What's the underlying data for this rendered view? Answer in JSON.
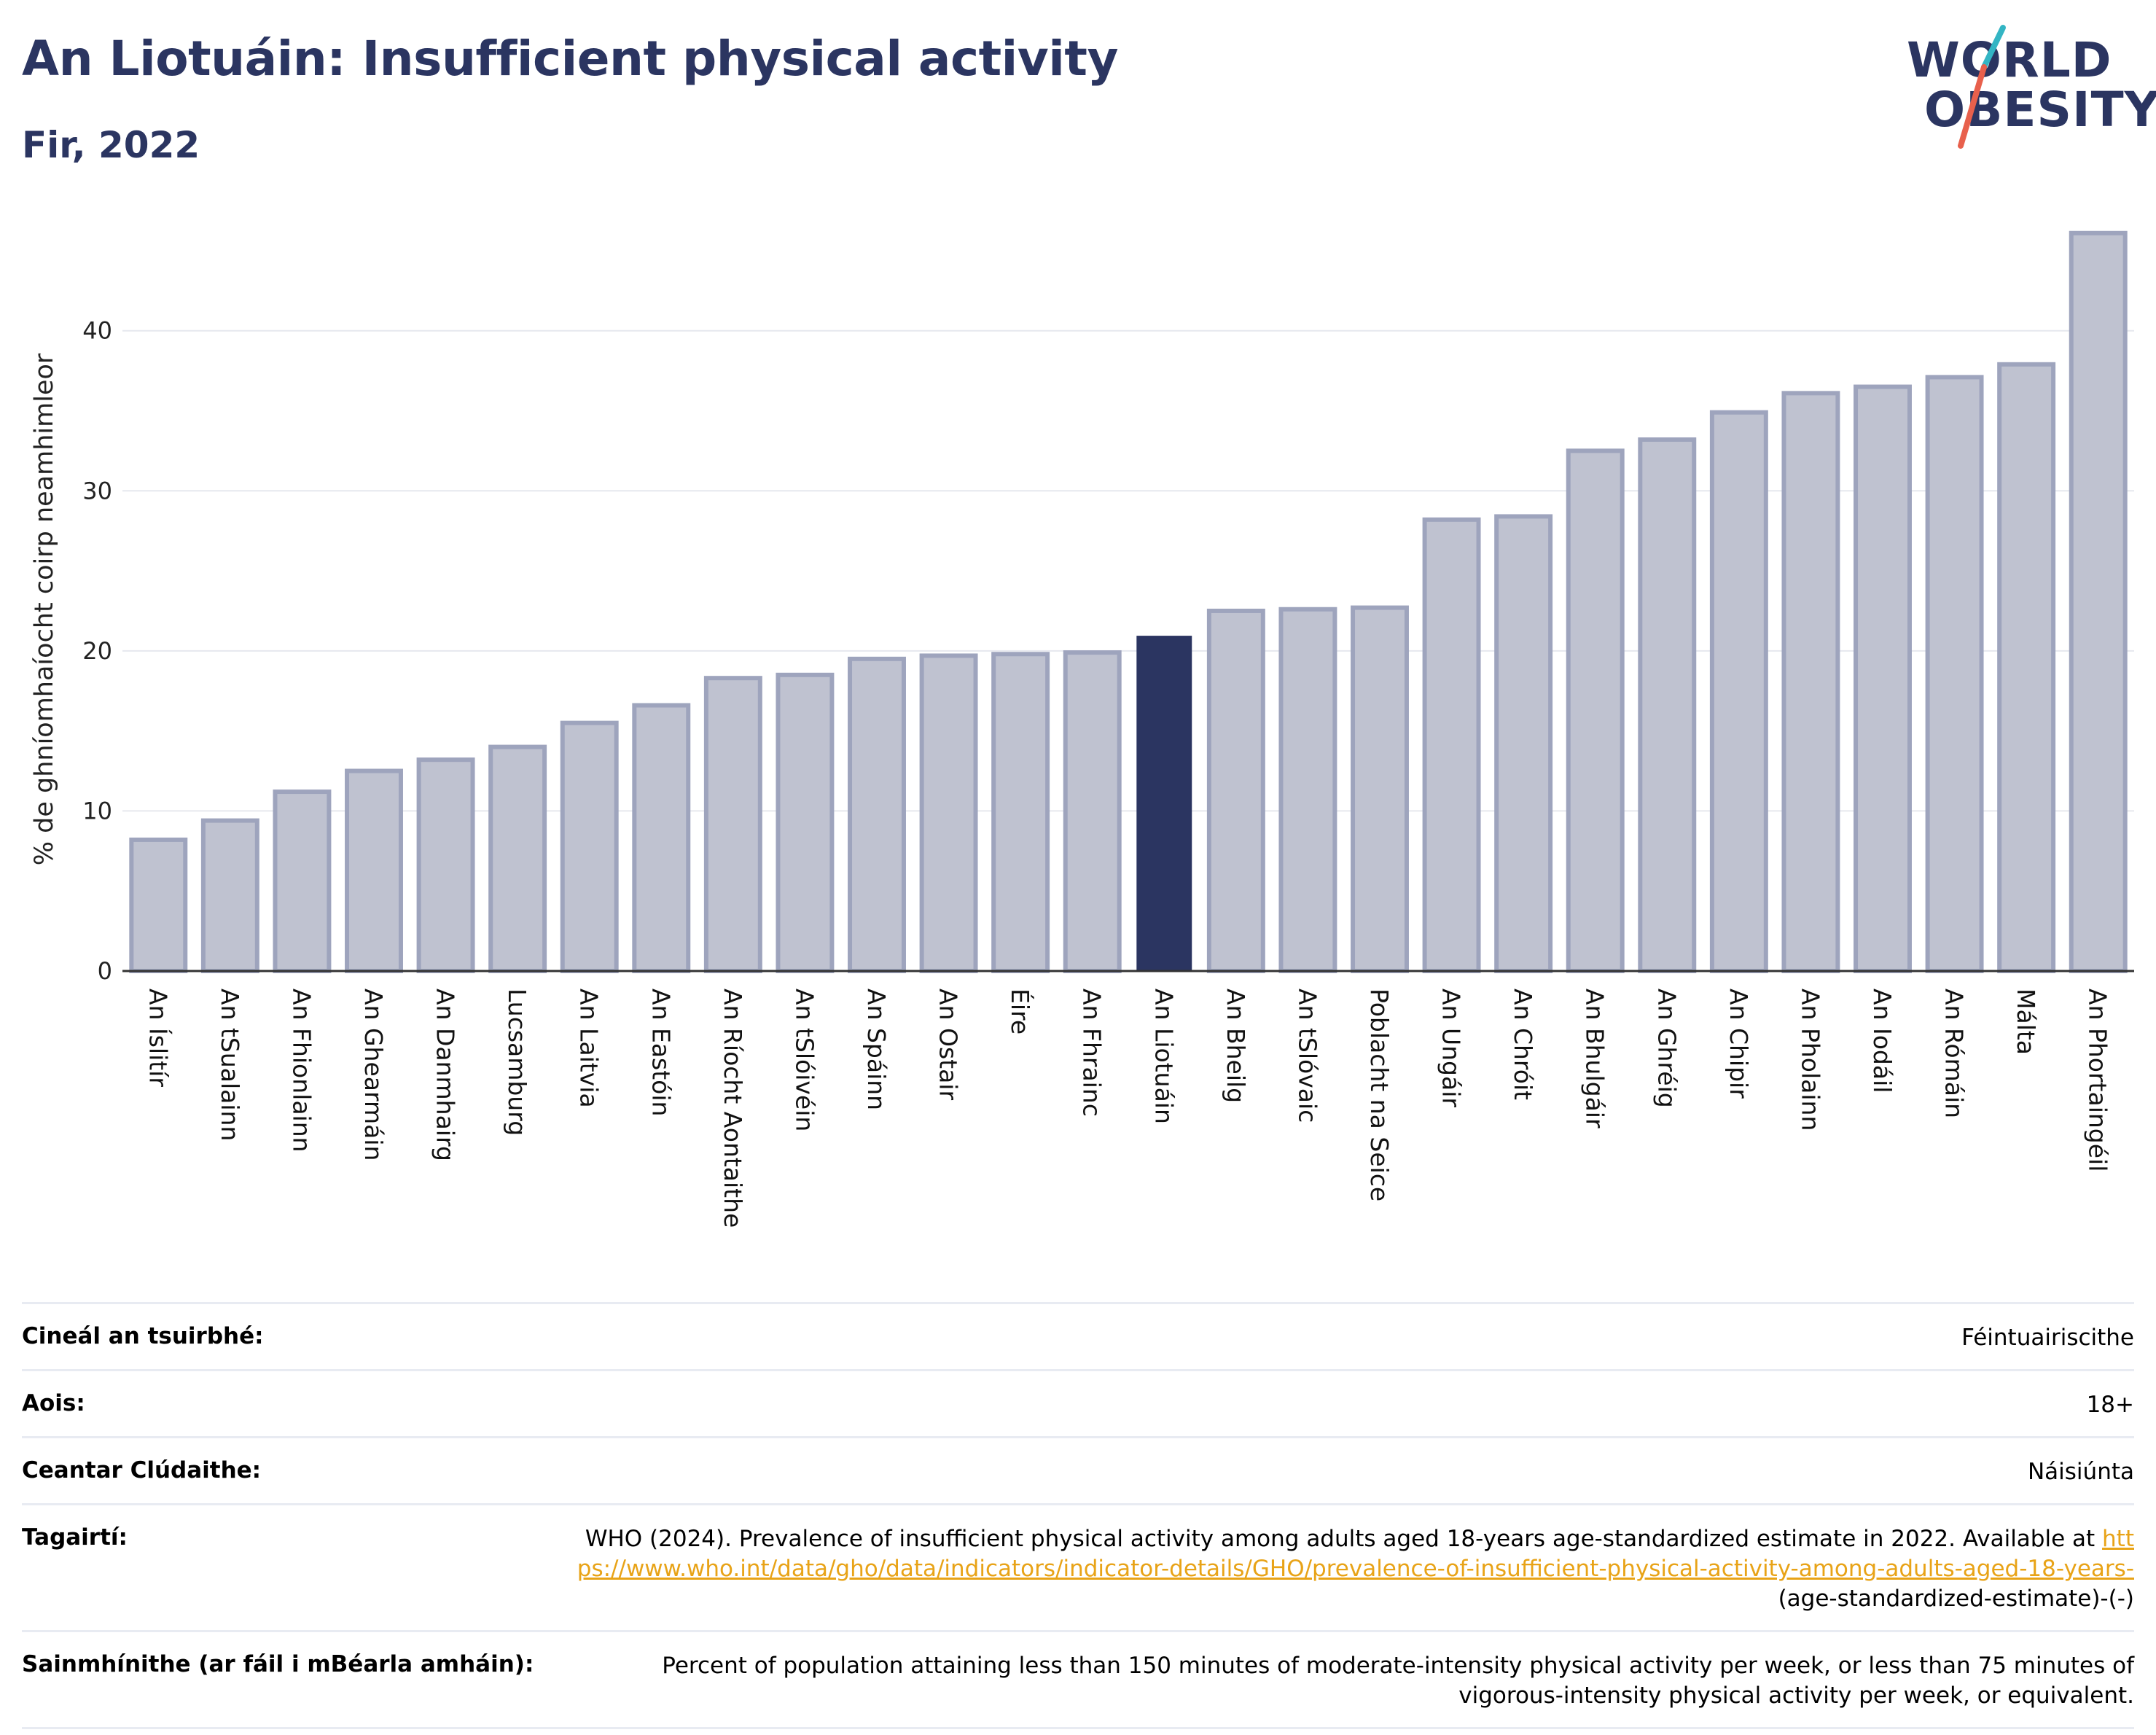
{
  "header": {
    "title": "An Liotuáin: Insufficient physical activity",
    "subtitle": "Fir, 2022"
  },
  "logo": {
    "line1": "WORLD",
    "line2": "OBESITY"
  },
  "colors": {
    "title": "#2b3561",
    "bar": "#bfc2d0",
    "bar_border": "#9ea4bd",
    "highlight": "#2b3561",
    "grid": "#e6e8ee",
    "link": "#e8a317",
    "logo_accent_teal": "#33b5c4",
    "logo_accent_red": "#e8604c"
  },
  "chart_data": {
    "type": "bar",
    "ylabel": "% de ghníomhaíocht coirp neamhimleor",
    "ylim": [
      0,
      47
    ],
    "yticks": [
      0,
      10,
      20,
      30,
      40
    ],
    "grid": true,
    "highlight": "An Liotuáin",
    "categories": [
      "An Íslitír",
      "An tSualainn",
      "An Fhionlainn",
      "An Ghearmáin",
      "An Danmhairg",
      "Lucsamburg",
      "An Laitvia",
      "An Eastóin",
      "An Ríocht Aontaithe",
      "An tSlóivéin",
      "An Spáinn",
      "An Ostair",
      "Éire",
      "An Fhrainc",
      "An Liotuáin",
      "An Bheilg",
      "An tSlóvaic",
      "Poblacht na Seice",
      "An Ungáir",
      "An Chróit",
      "An Bhulgáir",
      "An Ghréig",
      "An Chipir",
      "An Pholainn",
      "An Iodáil",
      "An Rómáin",
      "Málta",
      "An Phortaingéil"
    ],
    "values": [
      8.2,
      9.4,
      11.2,
      12.5,
      13.2,
      14.0,
      15.5,
      16.6,
      18.3,
      18.5,
      19.5,
      19.7,
      19.8,
      19.9,
      20.9,
      22.5,
      22.6,
      22.7,
      28.2,
      28.4,
      32.5,
      33.2,
      34.9,
      36.1,
      36.5,
      37.1,
      37.9,
      46.1
    ]
  },
  "info": {
    "survey_type": {
      "label": "Cineál an tsuirbhé:",
      "value": "Féintuairiscithe"
    },
    "age": {
      "label": "Aois:",
      "value": "18+"
    },
    "coverage": {
      "label": "Ceantar Clúdaithe:",
      "value": "Náisiúnta"
    },
    "references": {
      "label": "Tagairtí:",
      "text": "WHO (2024). Prevalence of insufficient physical activity among adults aged 18-years age-standardized estimate in 2022. Available at",
      "link": "https://www.who.int/data/gho/data/indicators/indicator-details/GHO/prevalence-of-insufficient-physical-activity-among-adults-aged-18-years-",
      "suffix": "(age-standardized-estimate)-(-)"
    },
    "definitions": {
      "label": "Sainmhínithe (ar fáil i mBéarla amháin):",
      "value": "Percent of population attaining less than 150 minutes of moderate-intensity physical activity per week, or less than 75 minutes of vigorous-intensity physical activity per week, or equivalent."
    }
  }
}
